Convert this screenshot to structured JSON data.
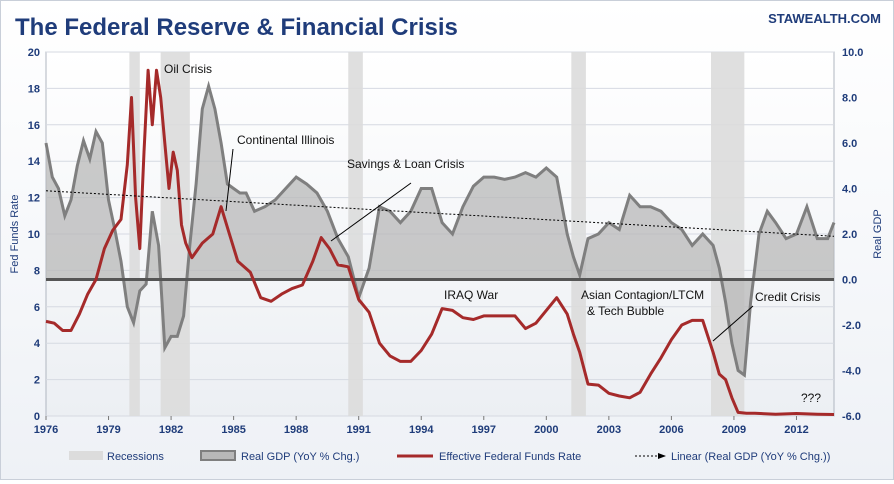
{
  "chart_data": {
    "type": "area",
    "title": "The Federal Reserve & Financial Crisis",
    "source": "STAWEALTH.COM",
    "xlabel": "",
    "ylabel_left": "Fed Funds Rate",
    "ylabel_right": "Real GDP",
    "xlim": [
      1976,
      2013.8
    ],
    "ylim_left": [
      0,
      20
    ],
    "ylim_right": [
      -6.0,
      10.0
    ],
    "x_ticks": [
      "1976",
      "1979",
      "1982",
      "1985",
      "1988",
      "1991",
      "1994",
      "1997",
      "2000",
      "2003",
      "2006",
      "2009",
      "2012"
    ],
    "y_ticks_left": [
      "0",
      "2",
      "4",
      "6",
      "8",
      "10",
      "12",
      "14",
      "16",
      "18",
      "20"
    ],
    "y_ticks_right": [
      "-6.0",
      "-4.0",
      "-2.0",
      "0.0",
      "2.0",
      "4.0",
      "6.0",
      "8.0",
      "10.0"
    ],
    "colors": {
      "title": "#1f3c7a",
      "recession": "#dcdcdc",
      "gdp_fill": "#b8b8b8",
      "gdp_line": "#7f7f7f",
      "fed_funds": "#a52a2a",
      "trend": "#000000",
      "axis_text": "#1f3c7a"
    },
    "recessions": [
      [
        1980.0,
        1980.5
      ],
      [
        1981.5,
        1982.9
      ],
      [
        1990.5,
        1991.2
      ],
      [
        2001.2,
        2001.9
      ],
      [
        2007.9,
        2009.5
      ]
    ],
    "series": [
      {
        "name": "Real GDP (YoY % Chg.)",
        "axis": "right",
        "x": [
          1976.0,
          1976.3,
          1976.6,
          1976.9,
          1977.2,
          1977.5,
          1977.8,
          1978.1,
          1978.4,
          1978.7,
          1979.0,
          1979.3,
          1979.6,
          1979.9,
          1980.2,
          1980.5,
          1980.8,
          1981.1,
          1981.4,
          1981.7,
          1982.0,
          1982.3,
          1982.6,
          1982.9,
          1983.2,
          1983.5,
          1983.8,
          1984.1,
          1984.4,
          1984.7,
          1985.0,
          1985.3,
          1985.6,
          1986.0,
          1986.5,
          1987.0,
          1987.5,
          1988.0,
          1988.5,
          1989.0,
          1989.5,
          1990.0,
          1990.5,
          1991.0,
          1991.5,
          1992.0,
          1992.5,
          1993.0,
          1993.5,
          1994.0,
          1994.5,
          1995.0,
          1995.5,
          1996.0,
          1996.5,
          1997.0,
          1997.5,
          1998.0,
          1998.5,
          1999.0,
          1999.5,
          2000.0,
          2000.5,
          2001.0,
          2001.3,
          2001.6,
          2002.0,
          2002.5,
          2003.0,
          2003.5,
          2004.0,
          2004.5,
          2005.0,
          2005.5,
          2006.0,
          2006.5,
          2007.0,
          2007.5,
          2008.0,
          2008.3,
          2008.6,
          2008.9,
          2009.2,
          2009.5,
          2009.8,
          2010.2,
          2010.6,
          2011.0,
          2011.5,
          2012.0,
          2012.5,
          2013.0,
          2013.5,
          2013.8
        ],
        "values": [
          6.0,
          4.5,
          4.0,
          2.8,
          3.5,
          5.0,
          6.1,
          5.3,
          6.5,
          6.0,
          3.5,
          2.2,
          0.8,
          -1.2,
          -1.9,
          -0.5,
          -0.2,
          3.0,
          1.5,
          -3.0,
          -2.5,
          -2.5,
          -1.6,
          1.5,
          4.2,
          7.5,
          8.5,
          7.5,
          6.0,
          4.2,
          4.0,
          3.8,
          3.8,
          3.0,
          3.2,
          3.5,
          4.0,
          4.5,
          4.2,
          3.8,
          3.0,
          1.8,
          1.0,
          -0.8,
          0.5,
          3.2,
          3.0,
          2.5,
          3.0,
          4.0,
          4.0,
          2.5,
          2.0,
          3.2,
          4.1,
          4.5,
          4.5,
          4.4,
          4.5,
          4.7,
          4.5,
          4.9,
          4.5,
          2.0,
          1.0,
          0.2,
          1.8,
          2.0,
          2.5,
          2.2,
          3.7,
          3.2,
          3.2,
          3.0,
          2.5,
          2.2,
          1.5,
          2.0,
          1.5,
          0.5,
          -1.0,
          -2.8,
          -4.0,
          -4.2,
          -1.0,
          2.0,
          3.0,
          2.5,
          1.8,
          2.0,
          3.2,
          1.8,
          1.8,
          2.5
        ]
      },
      {
        "name": "Effective Federal Funds Rate",
        "axis": "left",
        "x": [
          1976.0,
          1976.4,
          1976.8,
          1977.2,
          1977.6,
          1978.0,
          1978.4,
          1978.8,
          1979.2,
          1979.6,
          1979.9,
          1980.1,
          1980.3,
          1980.5,
          1980.7,
          1980.9,
          1981.1,
          1981.3,
          1981.5,
          1981.7,
          1981.9,
          1982.1,
          1982.3,
          1982.5,
          1982.7,
          1983.0,
          1983.5,
          1984.0,
          1984.4,
          1984.8,
          1985.2,
          1985.8,
          1986.3,
          1986.8,
          1987.3,
          1987.8,
          1988.3,
          1988.8,
          1989.2,
          1989.6,
          1990.0,
          1990.5,
          1991.0,
          1991.5,
          1992.0,
          1992.5,
          1993.0,
          1993.5,
          1994.0,
          1994.5,
          1995.0,
          1995.5,
          1996.0,
          1996.5,
          1997.0,
          1997.5,
          1998.0,
          1998.5,
          1999.0,
          1999.5,
          2000.0,
          2000.5,
          2001.0,
          2001.3,
          2001.6,
          2002.0,
          2002.5,
          2003.0,
          2003.5,
          2004.0,
          2004.5,
          2005.0,
          2005.5,
          2006.0,
          2006.5,
          2007.0,
          2007.5,
          2008.0,
          2008.3,
          2008.6,
          2008.9,
          2009.2,
          2009.6,
          2010.0,
          2011.0,
          2012.0,
          2013.0,
          2013.8
        ],
        "values": [
          5.2,
          5.1,
          4.7,
          4.7,
          5.6,
          6.7,
          7.5,
          9.2,
          10.2,
          10.8,
          13.8,
          17.5,
          12.0,
          9.2,
          14.5,
          19.0,
          16.0,
          19.0,
          17.5,
          15.0,
          12.5,
          14.5,
          13.5,
          10.5,
          9.5,
          8.7,
          9.5,
          10.0,
          11.5,
          10.0,
          8.5,
          7.9,
          6.5,
          6.3,
          6.7,
          7.0,
          7.2,
          8.5,
          9.8,
          9.2,
          8.3,
          8.2,
          6.4,
          5.7,
          4.0,
          3.3,
          3.0,
          3.0,
          3.6,
          4.5,
          5.9,
          5.8,
          5.4,
          5.3,
          5.5,
          5.5,
          5.5,
          5.5,
          4.8,
          5.1,
          5.8,
          6.5,
          5.6,
          4.5,
          3.5,
          1.75,
          1.7,
          1.25,
          1.1,
          1.0,
          1.3,
          2.3,
          3.2,
          4.2,
          5.0,
          5.25,
          5.25,
          3.5,
          2.3,
          2.0,
          1.0,
          0.2,
          0.15,
          0.15,
          0.1,
          0.14,
          0.1,
          0.08
        ]
      },
      {
        "name": "Linear (Real GDP (YoY % Chg.))",
        "axis": "right",
        "x": [
          1976.0,
          2013.8
        ],
        "values": [
          3.9,
          1.9
        ]
      }
    ],
    "annotations": [
      "Oil Crisis",
      "Continental Illinois",
      "Savings & Loan Crisis",
      "IRAQ War",
      "Asian Contagion/LTCM",
      "& Tech Bubble",
      "Credit Crisis",
      "???"
    ],
    "legend": {
      "placement": "bottom",
      "items": [
        "Recessions",
        "Real GDP (YoY % Chg.)",
        "Effective Federal Funds Rate",
        "Linear (Real GDP (YoY % Chg.))"
      ]
    },
    "grid": true
  }
}
